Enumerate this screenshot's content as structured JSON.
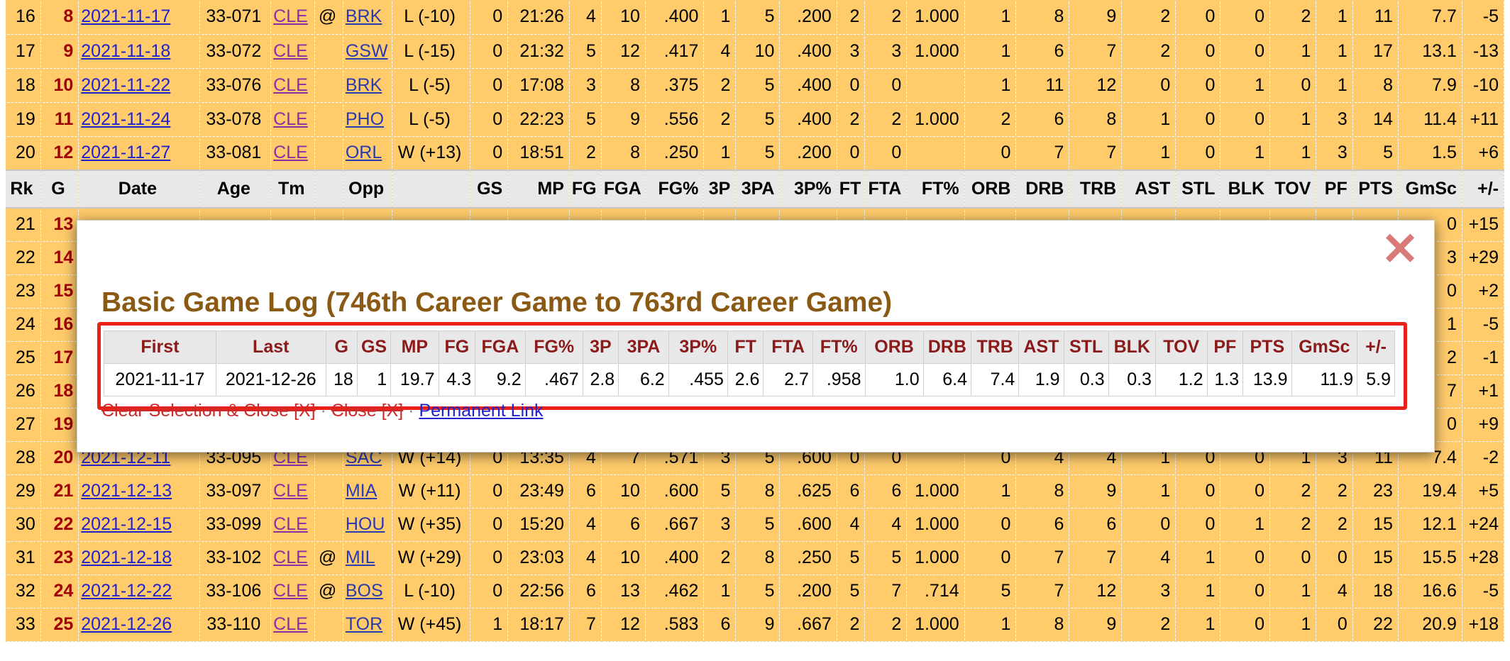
{
  "headers": [
    "Rk",
    "G",
    "Date",
    "Age",
    "Tm",
    "",
    "Opp",
    "",
    "GS",
    "MP",
    "FG",
    "FGA",
    "FG%",
    "3P",
    "3PA",
    "3P%",
    "FT",
    "FTA",
    "FT%",
    "ORB",
    "DRB",
    "TRB",
    "AST",
    "STL",
    "BLK",
    "TOV",
    "PF",
    "PTS",
    "GmSc",
    "+/-"
  ],
  "rows_top": [
    [
      "16",
      "8",
      "2021-11-17",
      "33-071",
      "CLE",
      "@",
      "BRK",
      "L (-10)",
      "0",
      "21:26",
      "4",
      "10",
      ".400",
      "1",
      "5",
      ".200",
      "2",
      "2",
      "1.000",
      "1",
      "8",
      "9",
      "2",
      "0",
      "0",
      "2",
      "1",
      "11",
      "7.7",
      "-5"
    ],
    [
      "17",
      "9",
      "2021-11-18",
      "33-072",
      "CLE",
      "",
      "GSW",
      "L (-15)",
      "0",
      "21:32",
      "5",
      "12",
      ".417",
      "4",
      "10",
      ".400",
      "3",
      "3",
      "1.000",
      "1",
      "6",
      "7",
      "2",
      "0",
      "0",
      "1",
      "1",
      "17",
      "13.1",
      "-13"
    ],
    [
      "18",
      "10",
      "2021-11-22",
      "33-076",
      "CLE",
      "",
      "BRK",
      "L (-5)",
      "0",
      "17:08",
      "3",
      "8",
      ".375",
      "2",
      "5",
      ".400",
      "0",
      "0",
      "",
      "1",
      "11",
      "12",
      "0",
      "0",
      "1",
      "0",
      "1",
      "8",
      "7.9",
      "-10"
    ],
    [
      "19",
      "11",
      "2021-11-24",
      "33-078",
      "CLE",
      "",
      "PHO",
      "L (-5)",
      "0",
      "22:23",
      "5",
      "9",
      ".556",
      "2",
      "5",
      ".400",
      "2",
      "2",
      "1.000",
      "2",
      "6",
      "8",
      "1",
      "0",
      "0",
      "1",
      "3",
      "14",
      "11.4",
      "+11"
    ],
    [
      "20",
      "12",
      "2021-11-27",
      "33-081",
      "CLE",
      "",
      "ORL",
      "W (+13)",
      "0",
      "18:51",
      "2",
      "8",
      ".250",
      "1",
      "5",
      ".200",
      "0",
      "0",
      "",
      "0",
      "7",
      "7",
      "1",
      "0",
      "1",
      "1",
      "3",
      "5",
      "1.5",
      "+6"
    ]
  ],
  "rows_bottom": [
    [
      "21",
      "13",
      "",
      "",
      "",
      "",
      "",
      "",
      "",
      "",
      "",
      "",
      "",
      "",
      "",
      "",
      "",
      "",
      "",
      "",
      "",
      "",
      "",
      "",
      "",
      "",
      "",
      "",
      "0",
      "+15"
    ],
    [
      "22",
      "14",
      "",
      "",
      "",
      "",
      "",
      "",
      "",
      "",
      "",
      "",
      "",
      "",
      "",
      "",
      "",
      "",
      "",
      "",
      "",
      "",
      "",
      "",
      "",
      "",
      "",
      "",
      "3",
      "+29"
    ],
    [
      "23",
      "15",
      "",
      "",
      "",
      "",
      "",
      "",
      "",
      "",
      "",
      "",
      "",
      "",
      "",
      "",
      "",
      "",
      "",
      "",
      "",
      "",
      "",
      "",
      "",
      "",
      "",
      "",
      "0",
      "+2"
    ],
    [
      "24",
      "16",
      "",
      "",
      "",
      "",
      "",
      "",
      "",
      "",
      "",
      "",
      "",
      "",
      "",
      "",
      "",
      "",
      "",
      "",
      "",
      "",
      "",
      "",
      "",
      "",
      "",
      "",
      "1",
      "-5"
    ],
    [
      "25",
      "17",
      "",
      "",
      "",
      "",
      "",
      "",
      "",
      "",
      "",
      "",
      "",
      "",
      "",
      "",
      "",
      "",
      "",
      "",
      "",
      "",
      "",
      "",
      "",
      "",
      "",
      "",
      "2",
      "-1"
    ],
    [
      "26",
      "18",
      "",
      "",
      "",
      "",
      "",
      "",
      "",
      "",
      "",
      "",
      "",
      "",
      "",
      "",
      "",
      "",
      "",
      "",
      "",
      "",
      "",
      "",
      "",
      "",
      "",
      "",
      "7",
      "+1"
    ],
    [
      "27",
      "19",
      "",
      "",
      "",
      "",
      "",
      "",
      "",
      "",
      "",
      "",
      "",
      "",
      "",
      "",
      "",
      "",
      "",
      "",
      "",
      "",
      "",
      "",
      "",
      "",
      "",
      "",
      "0",
      "+9"
    ],
    [
      "28",
      "20",
      "2021-12-11",
      "33-095",
      "CLE",
      "",
      "SAC",
      "W (+14)",
      "0",
      "13:35",
      "4",
      "7",
      ".571",
      "3",
      "5",
      ".600",
      "0",
      "0",
      "",
      "0",
      "4",
      "4",
      "1",
      "0",
      "0",
      "1",
      "3",
      "11",
      "7.4",
      "-2"
    ],
    [
      "29",
      "21",
      "2021-12-13",
      "33-097",
      "CLE",
      "",
      "MIA",
      "W (+11)",
      "0",
      "23:49",
      "6",
      "10",
      ".600",
      "5",
      "8",
      ".625",
      "6",
      "6",
      "1.000",
      "1",
      "8",
      "9",
      "1",
      "0",
      "0",
      "2",
      "2",
      "23",
      "19.4",
      "+5"
    ],
    [
      "30",
      "22",
      "2021-12-15",
      "33-099",
      "CLE",
      "",
      "HOU",
      "W (+35)",
      "0",
      "15:20",
      "4",
      "6",
      ".667",
      "3",
      "5",
      ".600",
      "4",
      "4",
      "1.000",
      "0",
      "6",
      "6",
      "0",
      "0",
      "1",
      "2",
      "2",
      "15",
      "12.1",
      "+24"
    ],
    [
      "31",
      "23",
      "2021-12-18",
      "33-102",
      "CLE",
      "@",
      "MIL",
      "W (+29)",
      "0",
      "23:03",
      "4",
      "10",
      ".400",
      "2",
      "8",
      ".250",
      "5",
      "5",
      "1.000",
      "0",
      "7",
      "7",
      "4",
      "1",
      "0",
      "0",
      "0",
      "15",
      "15.5",
      "+28"
    ],
    [
      "32",
      "24",
      "2021-12-22",
      "33-106",
      "CLE",
      "@",
      "BOS",
      "L (-10)",
      "0",
      "22:56",
      "6",
      "13",
      ".462",
      "1",
      "5",
      ".200",
      "5",
      "7",
      ".714",
      "5",
      "7",
      "12",
      "3",
      "1",
      "0",
      "1",
      "4",
      "18",
      "16.6",
      "-5"
    ],
    [
      "33",
      "25",
      "2021-12-26",
      "33-110",
      "CLE",
      "",
      "TOR",
      "W (+45)",
      "1",
      "18:17",
      "7",
      "12",
      ".583",
      "6",
      "9",
      ".667",
      "2",
      "2",
      "1.000",
      "1",
      "8",
      "9",
      "2",
      "1",
      "0",
      "1",
      "0",
      "22",
      "20.9",
      "+18"
    ]
  ],
  "modal": {
    "close_glyph": "✕",
    "title": "Basic Game Log (746th Career Game to 763rd Career Game)",
    "summary_headers": [
      "First",
      "Last",
      "G",
      "GS",
      "MP",
      "FG",
      "FGA",
      "FG%",
      "3P",
      "3PA",
      "3P%",
      "FT",
      "FTA",
      "FT%",
      "ORB",
      "DRB",
      "TRB",
      "AST",
      "STL",
      "BLK",
      "TOV",
      "PF",
      "PTS",
      "GmSc",
      "+/-"
    ],
    "summary_row": [
      "2021-11-17",
      "2021-12-26",
      "18",
      "1",
      "19.7",
      "4.3",
      "9.2",
      ".467",
      "2.8",
      "6.2",
      ".455",
      "2.6",
      "2.7",
      ".958",
      "1.0",
      "6.4",
      "7.4",
      "1.9",
      "0.3",
      "0.3",
      "1.2",
      "1.3",
      "13.9",
      "11.9",
      "5.9"
    ],
    "links": {
      "clear_close": "Clear Selection & Close [X]",
      "separator": "·",
      "close": "Close [X]",
      "permanent": "Permanent Link"
    }
  },
  "colors": {
    "row_bg": "#ffcb6b",
    "g_col": "#a00000",
    "title": "#8a5a14",
    "highlight": "#e8221b"
  }
}
